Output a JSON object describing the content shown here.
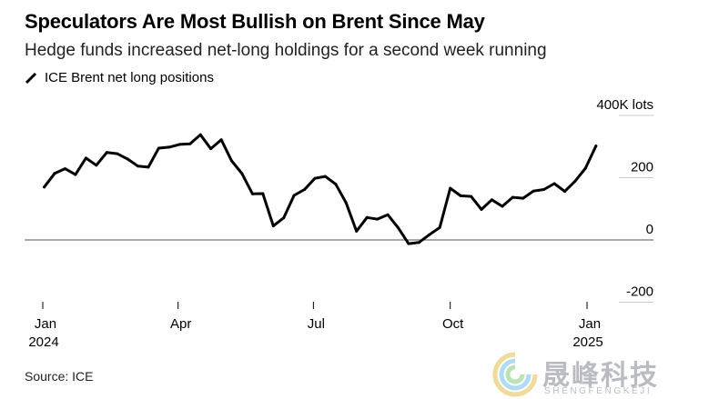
{
  "header": {
    "title": "Speculators Are Most Bullish on Brent Since May",
    "subtitle": "Hedge funds increased net-long holdings for a second week running"
  },
  "footer": {
    "source": "Source: ICE"
  },
  "watermark": {
    "text": "晟峰科技",
    "sub": "SHENGFENGKEJI",
    "icon": "swirl-logo-icon"
  },
  "colors": {
    "line": "#000000",
    "grid": "#cccccc",
    "zero_line": "#555555",
    "watermark": "#b9bcc2"
  },
  "chart_data": {
    "type": "line",
    "title": "Speculators Are Most Bullish on Brent Since May",
    "subtitle": "Hedge funds increased net-long holdings for a second week running",
    "xlabel": "",
    "ylabel": "",
    "series": [
      {
        "name": "ICE Brent net long positions",
        "x": [
          "2024-01-02",
          "2024-01-09",
          "2024-01-16",
          "2024-01-23",
          "2024-01-30",
          "2024-02-06",
          "2024-02-13",
          "2024-02-20",
          "2024-02-27",
          "2024-03-05",
          "2024-03-12",
          "2024-03-19",
          "2024-03-26",
          "2024-04-02",
          "2024-04-09",
          "2024-04-16",
          "2024-04-23",
          "2024-04-30",
          "2024-05-07",
          "2024-05-14",
          "2024-05-21",
          "2024-05-28",
          "2024-06-04",
          "2024-06-11",
          "2024-06-18",
          "2024-06-25",
          "2024-07-02",
          "2024-07-09",
          "2024-07-16",
          "2024-07-23",
          "2024-07-30",
          "2024-08-06",
          "2024-08-13",
          "2024-08-20",
          "2024-08-27",
          "2024-09-03",
          "2024-09-10",
          "2024-09-17",
          "2024-09-24",
          "2024-10-01",
          "2024-10-08",
          "2024-10-15",
          "2024-10-22",
          "2024-10-29",
          "2024-11-05",
          "2024-11-12",
          "2024-11-19",
          "2024-11-26",
          "2024-12-03",
          "2024-12-10",
          "2024-12-17",
          "2024-12-24",
          "2024-12-31",
          "2025-01-07"
        ],
        "values": [
          170,
          214,
          229,
          210,
          263,
          240,
          281,
          277,
          260,
          237,
          234,
          295,
          298,
          307,
          309,
          338,
          293,
          322,
          254,
          213,
          148,
          149,
          45,
          71,
          143,
          162,
          198,
          204,
          179,
          119,
          28,
          72,
          67,
          81,
          39,
          -12,
          -8,
          17,
          40,
          166,
          142,
          140,
          98,
          129,
          108,
          137,
          134,
          157,
          162,
          181,
          156,
          189,
          231,
          302
        ]
      }
    ],
    "x_ticks": [
      {
        "label": "Jan",
        "sublabel": "2024",
        "x": "2024-01-01"
      },
      {
        "label": "Apr",
        "sublabel": "",
        "x": "2024-04-01"
      },
      {
        "label": "Jul",
        "sublabel": "",
        "x": "2024-07-01"
      },
      {
        "label": "Oct",
        "sublabel": "",
        "x": "2024-10-01"
      },
      {
        "label": "Jan",
        "sublabel": "2025",
        "x": "2025-01-01"
      }
    ],
    "y_ticks": [
      {
        "value": 400,
        "label": "400K lots"
      },
      {
        "value": 200,
        "label": "200"
      },
      {
        "value": 0,
        "label": "0"
      },
      {
        "value": -200,
        "label": "-200"
      }
    ],
    "ylim": [
      -200,
      400
    ],
    "legend": "top-left",
    "grid": true
  }
}
